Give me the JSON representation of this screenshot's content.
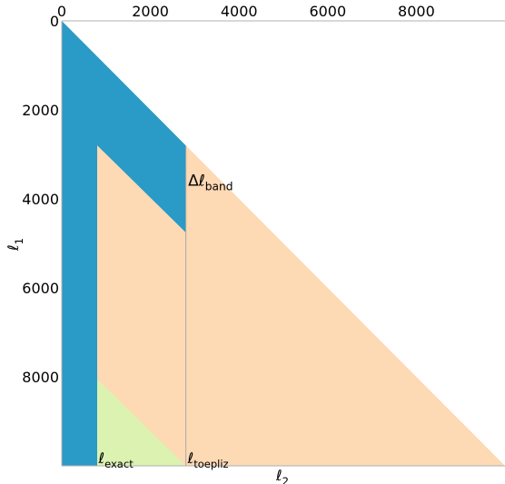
{
  "chart_data": {
    "type": "area",
    "x_axis": {
      "label_main": "ℓ",
      "label_sub": "2",
      "position": "top",
      "range": [
        0,
        10000
      ],
      "ticks": [
        0,
        2000,
        4000,
        6000,
        8000
      ]
    },
    "y_axis": {
      "label_main": "ℓ",
      "label_sub": "1",
      "inverted": true,
      "range": [
        0,
        10000
      ],
      "ticks": [
        0,
        2000,
        4000,
        6000,
        8000
      ]
    },
    "colors": {
      "band": "#2a9ac6",
      "toeplitz": "#fdd9b4",
      "exact": "#dcf2b0",
      "divider": "#a9a9a9"
    },
    "regions": [
      {
        "name": "band",
        "vertices": [
          [
            0,
            0
          ],
          [
            2800,
            2800
          ],
          [
            2800,
            4760
          ],
          [
            800,
            2800
          ],
          [
            800,
            10000
          ],
          [
            0,
            10000
          ]
        ]
      },
      {
        "name": "toeplitz",
        "vertices": [
          [
            800,
            2800
          ],
          [
            2800,
            4760
          ],
          [
            2800,
            2800
          ],
          [
            10000,
            10000
          ],
          [
            800,
            10000
          ]
        ]
      },
      {
        "name": "exact",
        "vertices": [
          [
            800,
            8050
          ],
          [
            2800,
            10000
          ],
          [
            800,
            10000
          ]
        ]
      }
    ],
    "divider_x": 2800,
    "annotations": [
      {
        "main": "Δℓ",
        "sub": "band",
        "x": 2850,
        "y": 3700,
        "fontsize": 17
      },
      {
        "main": "ℓ",
        "sub": "exact",
        "x": 830,
        "y": 9940,
        "fontsize": 16
      },
      {
        "main": "ℓ",
        "sub": "toepliz",
        "x": 2840,
        "y": 9940,
        "fontsize": 16
      }
    ]
  }
}
